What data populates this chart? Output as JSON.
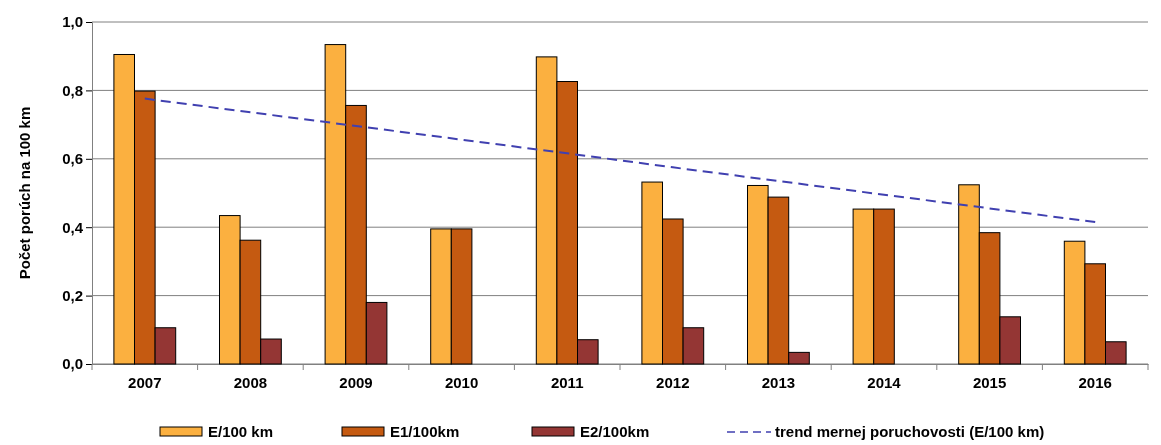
{
  "chart_data": {
    "type": "bar",
    "ylabel": "Počet porúch na 100 km",
    "categories": [
      "2007",
      "2008",
      "2009",
      "2010",
      "2011",
      "2012",
      "2013",
      "2014",
      "2015",
      "2016"
    ],
    "series": [
      {
        "name": "E/100 km",
        "color": "#fbb040",
        "values": [
          0.905,
          0.434,
          0.934,
          0.395,
          0.898,
          0.532,
          0.522,
          0.453,
          0.524,
          0.359
        ]
      },
      {
        "name": "E1/100km",
        "color": "#c55a11",
        "values": [
          0.798,
          0.362,
          0.756,
          0.395,
          0.826,
          0.424,
          0.488,
          0.453,
          0.384,
          0.293
        ]
      },
      {
        "name": "E2/100km",
        "color": "#943634",
        "values": [
          0.106,
          0.073,
          0.18,
          null,
          0.071,
          0.106,
          0.034,
          null,
          0.138,
          0.065
        ]
      },
      {
        "name": "trend mernej poruchovosti (E/100 km)",
        "type": "line",
        "line_style": "dashed",
        "color": "#4040b0",
        "values": [
          0.776,
          0.736,
          0.696,
          0.656,
          0.616,
          0.575,
          0.535,
          0.495,
          0.455,
          0.415
        ]
      }
    ],
    "ylim": [
      0,
      1
    ],
    "yticks": [
      {
        "value": 0,
        "label": "0,0"
      },
      {
        "value": 0.2,
        "label": "0,2"
      },
      {
        "value": 0.4,
        "label": "0,4"
      },
      {
        "value": 0.6,
        "label": "0,6"
      },
      {
        "value": 0.8,
        "label": "0,8"
      },
      {
        "value": 1,
        "label": "1,0"
      }
    ],
    "grid": "y",
    "legend": "bottom"
  }
}
